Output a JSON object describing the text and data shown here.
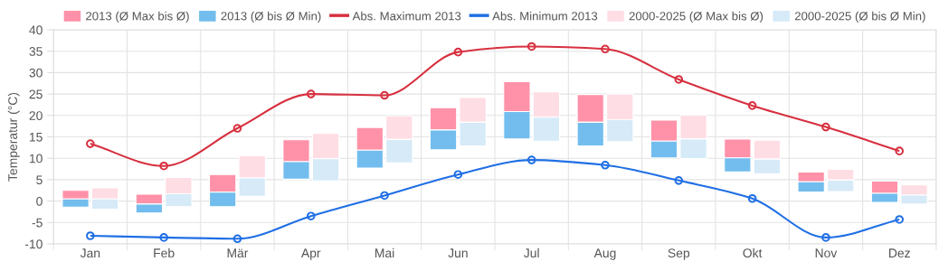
{
  "chart_data": {
    "type": "bar",
    "ylabel": "Temperatur (°C)",
    "categories": [
      "Jan",
      "Feb",
      "Mär",
      "Apr",
      "Mai",
      "Jun",
      "Jul",
      "Aug",
      "Sep",
      "Okt",
      "Nov",
      "Dez"
    ],
    "ylim": [
      -10,
      40
    ],
    "yticks": [
      -10,
      -5,
      0,
      5,
      10,
      15,
      20,
      25,
      30,
      35,
      40
    ],
    "grid": true,
    "legend": "top",
    "series": [
      {
        "name": "2013 (Ø Max bis Ø)",
        "color": "#ff91a9",
        "base": [
          0.5,
          -0.7,
          2.1,
          9.2,
          11.9,
          16.6,
          20.9,
          18.4,
          14.0,
          10.1,
          4.5,
          1.8
        ],
        "values": [
          2.0,
          2.3,
          4.1,
          5.1,
          5.3,
          5.2,
          7.0,
          6.5,
          4.9,
          4.4,
          2.3,
          2.9
        ]
      },
      {
        "name": "2013 (Ø bis Ø Min)",
        "color": "#72bdee",
        "base": [
          -1.4,
          -2.8,
          -1.3,
          5.1,
          7.7,
          12.0,
          14.5,
          12.9,
          10.1,
          6.8,
          2.1,
          -0.3
        ],
        "values": [
          1.9,
          2.1,
          3.4,
          4.1,
          4.2,
          4.6,
          6.4,
          5.5,
          3.9,
          3.3,
          2.4,
          2.1
        ]
      },
      {
        "name": "Abs. Maximum 2013",
        "type": "line",
        "color": "#d7303f",
        "marker": "circle",
        "values": [
          13.4,
          8.2,
          17.0,
          25.0,
          24.7,
          34.8,
          36.1,
          35.5,
          28.4,
          22.3,
          17.3,
          11.7
        ]
      },
      {
        "name": "Abs. Minimum 2013",
        "type": "line",
        "color": "#1f6fe5",
        "marker": "circle",
        "values": [
          -8.1,
          -8.5,
          -8.8,
          -3.5,
          1.3,
          6.2,
          9.6,
          8.4,
          4.8,
          0.6,
          -8.5,
          -4.3
        ]
      },
      {
        "name": "2000-2025 (Ø Max bis Ø)",
        "color": "#ffdde4",
        "base": [
          0.5,
          1.7,
          5.4,
          9.9,
          14.4,
          18.4,
          19.6,
          19.0,
          14.5,
          9.8,
          4.9,
          1.4
        ],
        "values": [
          2.6,
          3.8,
          5.2,
          5.9,
          5.5,
          5.8,
          5.9,
          6.0,
          5.5,
          4.4,
          2.5,
          2.4
        ]
      },
      {
        "name": "2000-2025 (Ø bis Ø Min)",
        "color": "#d6eaf8",
        "base": [
          -1.9,
          -1.3,
          1.1,
          4.7,
          8.9,
          12.9,
          14.0,
          13.9,
          9.9,
          6.4,
          2.2,
          -0.7
        ],
        "values": [
          2.4,
          3.0,
          4.3,
          5.2,
          5.5,
          5.5,
          5.6,
          5.1,
          4.6,
          3.4,
          2.7,
          2.1
        ]
      }
    ]
  }
}
